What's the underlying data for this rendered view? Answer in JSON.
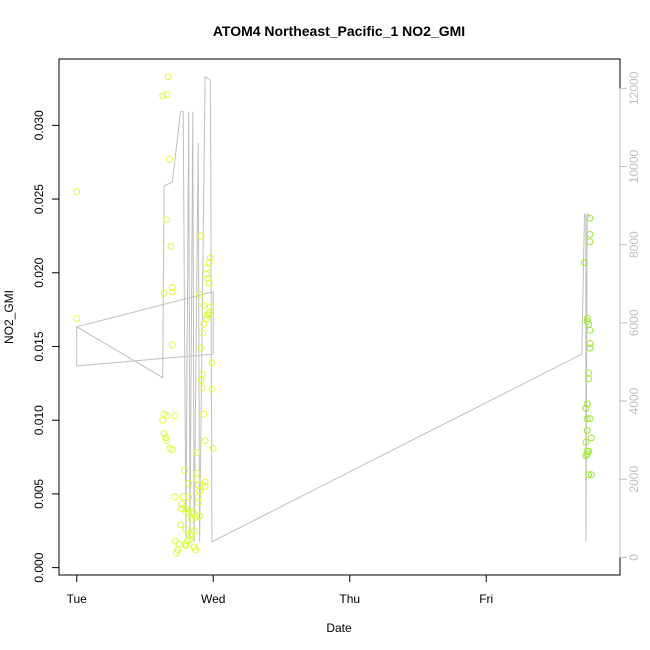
{
  "chart_data": {
    "type": "scatter",
    "title": "ATOM4 Northeast_Pacific_1 NO2_GMI",
    "xlabel": "Date",
    "ylabel": "NO2_GMI",
    "x_ticks": [
      "Tue",
      "Wed",
      "Thu",
      "Fri"
    ],
    "y_ticks": [
      "0.000",
      "0.005",
      "0.010",
      "0.015",
      "0.020",
      "0.025",
      "0.030"
    ],
    "y2_ticks": [
      "0",
      "2000",
      "4000",
      "6000",
      "8000",
      "10000",
      "12000"
    ],
    "ylim": [
      -0.0005,
      0.0345
    ],
    "y2lim": [
      -450,
      12750
    ],
    "xlim_days": [
      -0.13,
      3.98
    ],
    "colors": {
      "points_early": "#d8ff3a",
      "points_late": "#9be830",
      "altitude_line": "#bfbfbf",
      "axis": "#000000",
      "right_axis": "#bfbfbf"
    },
    "series": [
      {
        "values": [
          [
            0.0,
            0.0255
          ],
          [
            0.0,
            0.0169
          ],
          [
            0.63,
            0.032
          ],
          [
            0.66,
            0.0321
          ],
          [
            0.67,
            0.0333
          ],
          [
            0.68,
            0.0277
          ],
          [
            0.66,
            0.0236
          ],
          [
            0.69,
            0.0218
          ],
          [
            0.7,
            0.019
          ],
          [
            0.7,
            0.0187
          ],
          [
            0.64,
            0.0186
          ],
          [
            0.7,
            0.0151
          ],
          [
            0.64,
            0.0104
          ],
          [
            0.66,
            0.0103
          ],
          [
            0.63,
            0.01
          ],
          [
            0.72,
            0.0103
          ],
          [
            0.64,
            0.0091
          ],
          [
            0.66,
            0.0086
          ],
          [
            0.65,
            0.0088
          ],
          [
            0.68,
            0.0081
          ],
          [
            0.7,
            0.008
          ],
          [
            0.72,
            0.0048
          ],
          [
            0.72,
            0.0018
          ],
          [
            0.74,
            0.0012
          ],
          [
            0.73,
            0.001
          ],
          [
            0.75,
            0.0016
          ],
          [
            0.76,
            0.0029
          ],
          [
            0.77,
            0.004
          ],
          [
            0.77,
            0.0043
          ],
          [
            0.78,
            0.0048
          ],
          [
            0.79,
            0.0066
          ],
          [
            0.8,
            0.0038
          ],
          [
            0.8,
            0.0026
          ],
          [
            0.8,
            0.0016
          ],
          [
            0.8,
            0.0015
          ],
          [
            0.82,
            0.0037
          ],
          [
            0.82,
            0.0048
          ],
          [
            0.82,
            0.0057
          ],
          [
            0.83,
            0.0019
          ],
          [
            0.83,
            0.0022
          ],
          [
            0.84,
            0.0033
          ],
          [
            0.85,
            0.0038
          ],
          [
            0.86,
            0.0025
          ],
          [
            0.86,
            0.0014
          ],
          [
            0.87,
            0.0012
          ],
          [
            0.87,
            0.0034
          ],
          [
            0.88,
            0.006
          ],
          [
            0.88,
            0.0064
          ],
          [
            0.89,
            0.0056
          ],
          [
            0.89,
            0.0048
          ],
          [
            0.9,
            0.0035
          ],
          [
            0.9,
            0.0052
          ],
          [
            0.9,
            0.0185
          ],
          [
            0.91,
            0.0225
          ],
          [
            0.91,
            0.0149
          ],
          [
            0.91,
            0.0127
          ],
          [
            0.92,
            0.0122
          ],
          [
            0.92,
            0.0159
          ],
          [
            0.93,
            0.0165
          ],
          [
            0.93,
            0.0104
          ],
          [
            0.94,
            0.0086
          ],
          [
            0.94,
            0.0055
          ],
          [
            0.94,
            0.0058
          ],
          [
            0.95,
            0.0169
          ],
          [
            0.95,
            0.0203
          ],
          [
            0.95,
            0.0199
          ],
          [
            0.96,
            0.0196
          ],
          [
            0.96,
            0.0172
          ],
          [
            0.96,
            0.0171
          ],
          [
            0.97,
            0.0207
          ],
          [
            0.97,
            0.0173
          ],
          [
            0.97,
            0.0193
          ],
          [
            0.98,
            0.021
          ],
          [
            0.98,
            0.0177
          ],
          [
            0.99,
            0.0139
          ],
          [
            0.99,
            0.0121
          ],
          [
            1.0,
            0.0081
          ],
          [
            0.92,
            0.0131
          ],
          [
            0.93,
            0.0178
          ],
          [
            0.88,
            0.0078
          ],
          [
            0.89,
            0.0044
          ],
          [
            0.86,
            0.0037
          ],
          [
            0.84,
            0.0023
          ],
          [
            0.81,
            0.0018
          ],
          [
            0.8,
            0.004
          ]
        ]
      },
      {
        "values": [
          [
            3.72,
            0.0207
          ],
          [
            3.76,
            0.0237
          ],
          [
            3.76,
            0.0226
          ],
          [
            3.76,
            0.0221
          ],
          [
            3.74,
            0.0169
          ],
          [
            3.74,
            0.0167
          ],
          [
            3.75,
            0.0165
          ],
          [
            3.76,
            0.0161
          ],
          [
            3.76,
            0.0152
          ],
          [
            3.76,
            0.0149
          ],
          [
            3.75,
            0.0128
          ],
          [
            3.75,
            0.0132
          ],
          [
            3.74,
            0.0111
          ],
          [
            3.73,
            0.0108
          ],
          [
            3.74,
            0.0101
          ],
          [
            3.74,
            0.0093
          ],
          [
            3.77,
            0.0088
          ],
          [
            3.73,
            0.0085
          ],
          [
            3.74,
            0.0079
          ],
          [
            3.73,
            0.0076
          ],
          [
            3.74,
            0.0077
          ],
          [
            3.75,
            0.0063
          ],
          [
            3.77,
            0.0063
          ],
          [
            3.75,
            0.0079
          ],
          [
            3.76,
            0.0101
          ]
        ]
      }
    ],
    "altitude_line": [
      [
        0.0,
        5900
      ],
      [
        1.0,
        6800
      ],
      [
        1.0,
        5200
      ],
      [
        0.0,
        4900
      ],
      [
        0.0,
        5900
      ],
      [
        0.63,
        4600
      ],
      [
        0.64,
        9500
      ],
      [
        0.7,
        9600
      ],
      [
        0.76,
        11400
      ],
      [
        0.78,
        11400
      ],
      [
        0.8,
        500
      ],
      [
        0.82,
        11400
      ],
      [
        0.83,
        400
      ],
      [
        0.85,
        11400
      ],
      [
        0.86,
        400
      ],
      [
        0.89,
        10600
      ],
      [
        0.9,
        400
      ],
      [
        0.94,
        12300
      ],
      [
        0.98,
        12200
      ],
      [
        0.99,
        400
      ],
      [
        3.7,
        5200
      ],
      [
        3.72,
        8800
      ],
      [
        3.73,
        8700
      ],
      [
        3.73,
        400
      ],
      [
        3.74,
        8800
      ],
      [
        3.76,
        8700
      ]
    ]
  }
}
